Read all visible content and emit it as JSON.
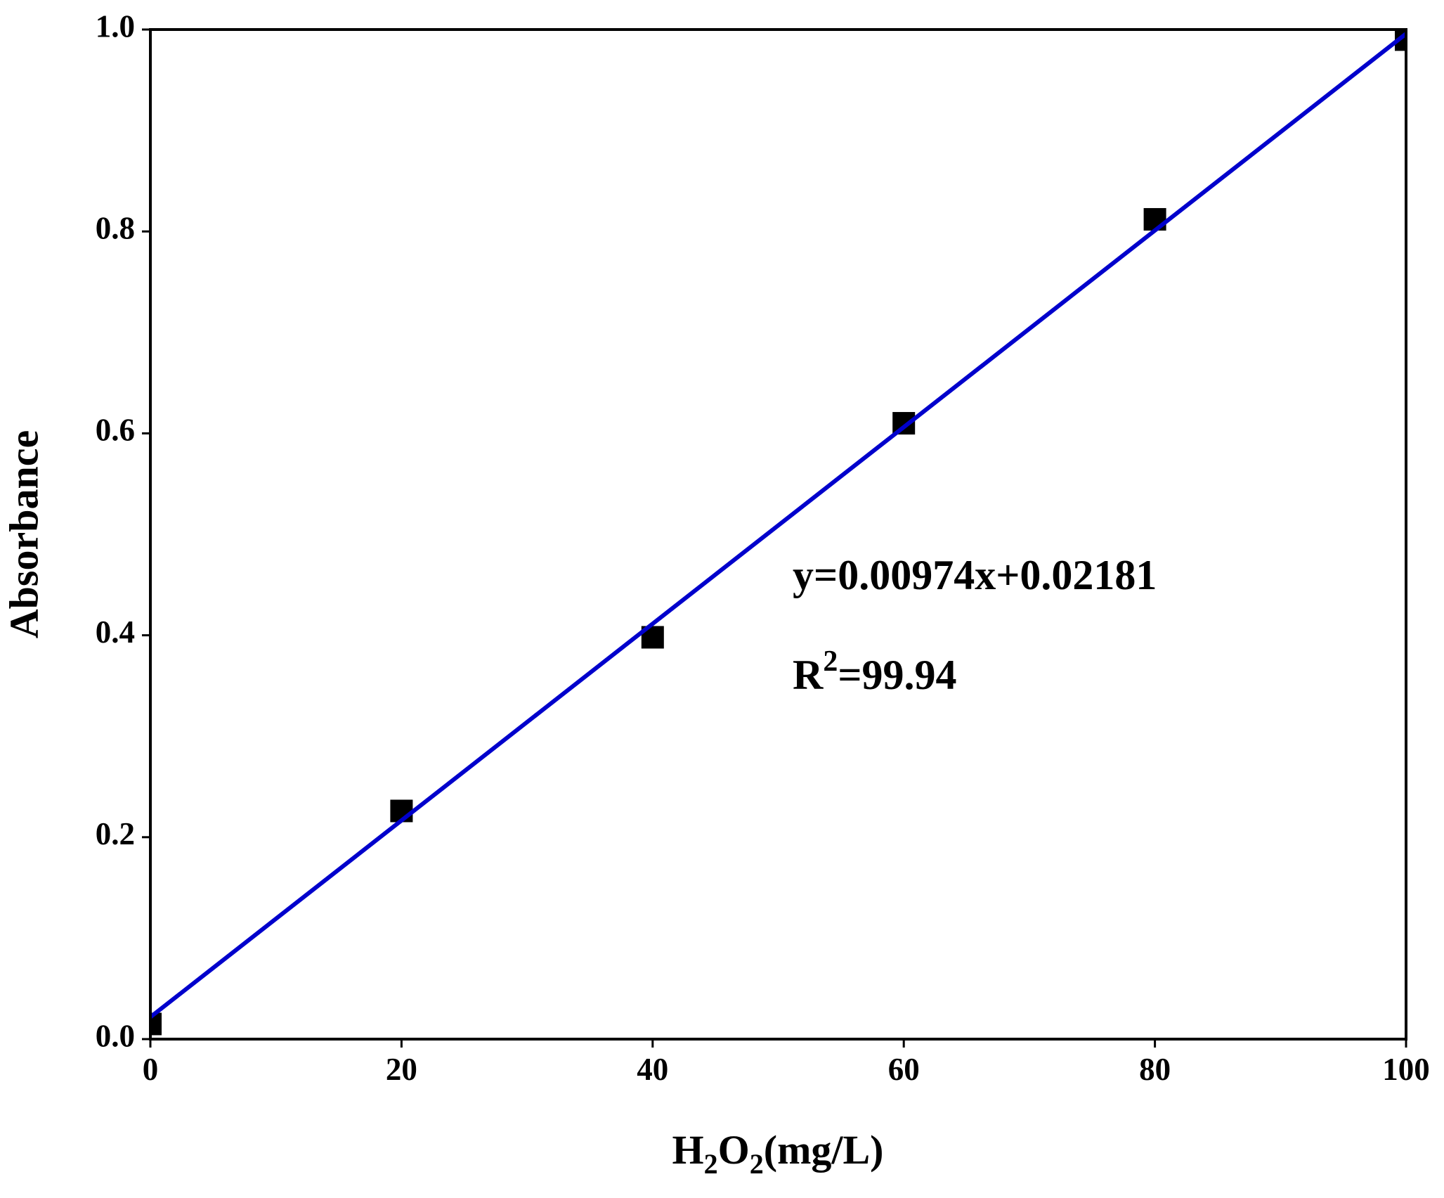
{
  "chart_data": {
    "type": "scatter",
    "x_label_parts": [
      "H",
      "2",
      "O",
      "2",
      "(mg/L)"
    ],
    "y_label": "Absorbance",
    "x": [
      0,
      20,
      40,
      60,
      80,
      100
    ],
    "series": [
      {
        "color": "#000000",
        "values": [
          0.015,
          0.226,
          0.398,
          0.61,
          0.812,
          0.99
        ]
      }
    ],
    "fit": {
      "slope": 0.00974,
      "intercept": 0.02181,
      "color": "#0000cc"
    },
    "equation": "y=0.00974x+0.02181",
    "r2_parts": [
      "R",
      "2",
      "=99.94"
    ],
    "xlim": [
      0,
      100
    ],
    "xticks": [
      0,
      20,
      40,
      60,
      80,
      100
    ],
    "ylim": [
      0,
      1
    ],
    "yticks": [
      {
        "value": 0,
        "label": "0.0"
      },
      0.2,
      0.4,
      0.6,
      0.8,
      {
        "value": 1,
        "label": "1.0"
      }
    ],
    "grid": false
  }
}
